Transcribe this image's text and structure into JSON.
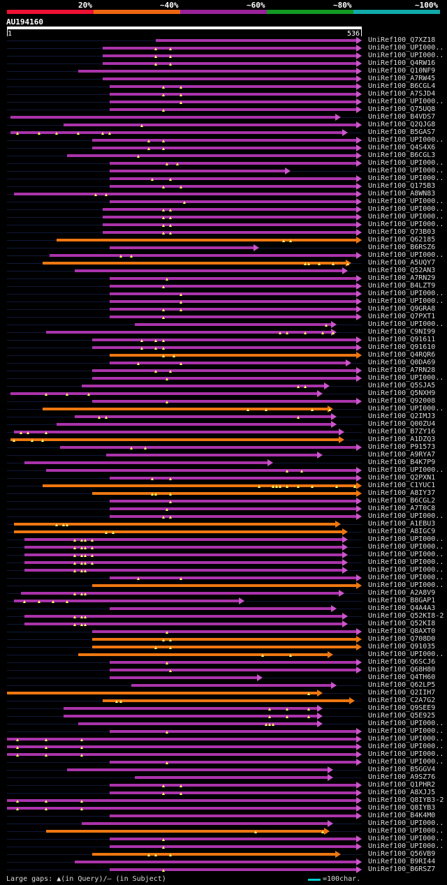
{
  "legend": {
    "labels": [
      "20%",
      "~40%",
      "~60%",
      "~80%",
      "~100%"
    ],
    "colors": [
      "#ee1133",
      "#ee6611",
      "#992299",
      "#119922",
      "#11aaaa"
    ]
  },
  "query": {
    "id": "AU194160",
    "start": "1",
    "end": "536"
  },
  "colors": {
    "orange": "#ee7711",
    "purple": "#aa33aa",
    "arrow_orange": "#ee7711",
    "arrow_purple": "#cc55cc"
  },
  "footer": {
    "gaps": "Large gaps: ▲(in Query)/– (in Subject)",
    "scale": "=100char."
  },
  "hits": [
    {
      "label": "UniRef100_Q7XZ18",
      "start": 0.42,
      "end": 1.0,
      "color": "purple",
      "marks": []
    },
    {
      "label": "UniRef100_UPI000..",
      "start": 0.27,
      "end": 1.0,
      "color": "purple",
      "marks": [
        0.42,
        0.46
      ]
    },
    {
      "label": "UniRef100_UPI000..",
      "start": 0.27,
      "end": 1.0,
      "color": "purple",
      "marks": [
        0.42,
        0.46
      ]
    },
    {
      "label": "UniRef100_Q4RW16",
      "start": 0.27,
      "end": 1.0,
      "color": "purple",
      "marks": [
        0.42,
        0.46
      ]
    },
    {
      "label": "UniRef100_Q10NF9",
      "start": 0.2,
      "end": 1.0,
      "color": "purple",
      "marks": []
    },
    {
      "label": "UniRef100_A7RW45",
      "start": 0.27,
      "end": 1.0,
      "color": "purple",
      "marks": []
    },
    {
      "label": "UniRef100_B6CGL4",
      "start": 0.29,
      "end": 1.0,
      "color": "purple",
      "marks": [
        0.44,
        0.49
      ]
    },
    {
      "label": "UniRef100_A7SJD4",
      "start": 0.29,
      "end": 1.0,
      "color": "purple",
      "marks": [
        0.44,
        0.49
      ]
    },
    {
      "label": "UniRef100_UPI000..",
      "start": 0.29,
      "end": 1.0,
      "color": "purple",
      "marks": [
        0.49
      ]
    },
    {
      "label": "UniRef100_Q75UQ8",
      "start": 0.29,
      "end": 1.0,
      "color": "purple",
      "marks": [
        0.44
      ]
    },
    {
      "label": "UniRef100_B4VDS7",
      "start": 0.01,
      "end": 0.94,
      "color": "purple",
      "marks": []
    },
    {
      "label": "UniRef100_Q2QJG8",
      "start": 0.16,
      "end": 1.0,
      "color": "purple",
      "marks": [
        0.38
      ]
    },
    {
      "label": "UniRef100_B5GAS7",
      "start": 0.01,
      "end": 0.96,
      "color": "purple",
      "marks": [
        0.03,
        0.09,
        0.14,
        0.2,
        0.27,
        0.29
      ]
    },
    {
      "label": "UniRef100_UPI000..",
      "start": 0.24,
      "end": 1.0,
      "color": "purple",
      "marks": [
        0.4,
        0.44
      ]
    },
    {
      "label": "UniRef100_Q4S4X6",
      "start": 0.24,
      "end": 1.0,
      "color": "purple",
      "marks": [
        0.4,
        0.44
      ]
    },
    {
      "label": "UniRef100_B6CGL3",
      "start": 0.17,
      "end": 1.0,
      "color": "purple",
      "marks": [
        0.37
      ]
    },
    {
      "label": "UniRef100_UPI000..",
      "start": 0.29,
      "end": 1.0,
      "color": "purple",
      "marks": [
        0.45,
        0.48
      ]
    },
    {
      "label": "UniRef100_UPI000..",
      "start": 0.29,
      "end": 0.8,
      "color": "purple",
      "marks": []
    },
    {
      "label": "UniRef100_UPI000..",
      "start": 0.29,
      "end": 1.0,
      "color": "purple",
      "marks": [
        0.41,
        0.46
      ]
    },
    {
      "label": "UniRef100_Q175B3",
      "start": 0.29,
      "end": 1.0,
      "color": "purple",
      "marks": [
        0.44,
        0.49
      ]
    },
    {
      "label": "UniRef100_A8WN83",
      "start": 0.02,
      "end": 1.0,
      "color": "purple",
      "marks": [
        0.25,
        0.28
      ]
    },
    {
      "label": "UniRef100_UPI000..",
      "start": 0.29,
      "end": 1.0,
      "color": "purple",
      "marks": [
        0.5
      ]
    },
    {
      "label": "UniRef100_UPI000..",
      "start": 0.27,
      "end": 1.0,
      "color": "purple",
      "marks": [
        0.44,
        0.46
      ]
    },
    {
      "label": "UniRef100_UPI000..",
      "start": 0.27,
      "end": 1.0,
      "color": "purple",
      "marks": [
        0.44,
        0.46
      ]
    },
    {
      "label": "UniRef100_UPI000..",
      "start": 0.27,
      "end": 1.0,
      "color": "purple",
      "marks": [
        0.44,
        0.46
      ]
    },
    {
      "label": "UniRef100_Q73B03",
      "start": 0.27,
      "end": 1.0,
      "color": "purple",
      "marks": [
        0.44,
        0.46
      ]
    },
    {
      "label": "UniRef100_Q62185",
      "start": 0.14,
      "end": 1.0,
      "color": "orange",
      "marks": [
        0.78,
        0.8
      ]
    },
    {
      "label": "UniRef100_B6RSZ6",
      "start": 0.29,
      "end": 0.71,
      "color": "purple",
      "marks": []
    },
    {
      "label": "UniRef100_UPI000..",
      "start": 0.12,
      "end": 1.0,
      "color": "purple",
      "marks": [
        0.32,
        0.35
      ]
    },
    {
      "label": "UniRef100_A5UQY7",
      "start": 0.1,
      "end": 0.97,
      "color": "orange",
      "marks": [
        0.84,
        0.85,
        0.88,
        0.92,
        0.96
      ]
    },
    {
      "label": "UniRef100_Q52AN3",
      "start": 0.19,
      "end": 0.96,
      "color": "purple",
      "marks": []
    },
    {
      "label": "UniRef100_A7RN29",
      "start": 0.29,
      "end": 1.0,
      "color": "purple",
      "marks": [
        0.45
      ]
    },
    {
      "label": "UniRef100_B4LZT9",
      "start": 0.29,
      "end": 1.0,
      "color": "purple",
      "marks": [
        0.44
      ]
    },
    {
      "label": "UniRef100_UPI000..",
      "start": 0.29,
      "end": 1.0,
      "color": "purple",
      "marks": [
        0.49
      ]
    },
    {
      "label": "UniRef100_UPI000..",
      "start": 0.29,
      "end": 1.0,
      "color": "purple",
      "marks": [
        0.49
      ]
    },
    {
      "label": "UniRef100_Q9GRA8",
      "start": 0.29,
      "end": 1.0,
      "color": "purple",
      "marks": [
        0.44,
        0.49
      ]
    },
    {
      "label": "UniRef100_Q7PXT1",
      "start": 0.29,
      "end": 1.0,
      "color": "purple",
      "marks": [
        0.44
      ]
    },
    {
      "label": "UniRef100_UPI000..",
      "start": 0.36,
      "end": 0.93,
      "color": "purple",
      "marks": [
        0.9
      ]
    },
    {
      "label": "UniRef100_C9NI99",
      "start": 0.11,
      "end": 0.93,
      "color": "purple",
      "marks": [
        0.77,
        0.79,
        0.84,
        0.89,
        0.92
      ]
    },
    {
      "label": "UniRef100_Q91611",
      "start": 0.24,
      "end": 1.0,
      "color": "purple",
      "marks": [
        0.38,
        0.42,
        0.44
      ]
    },
    {
      "label": "UniRef100_Q91610",
      "start": 0.24,
      "end": 1.0,
      "color": "purple",
      "marks": [
        0.38,
        0.42,
        0.44
      ]
    },
    {
      "label": "UniRef100_Q4RQR6",
      "start": 0.29,
      "end": 1.0,
      "color": "orange",
      "marks": [
        0.44,
        0.47
      ]
    },
    {
      "label": "UniRef100_Q0DA69",
      "start": 0.29,
      "end": 0.97,
      "color": "purple",
      "marks": [
        0.37,
        0.49
      ]
    },
    {
      "label": "UniRef100_A7RN28",
      "start": 0.24,
      "end": 1.0,
      "color": "purple",
      "marks": [
        0.42,
        0.46
      ]
    },
    {
      "label": "UniRef100_UPI000..",
      "start": 0.24,
      "end": 1.0,
      "color": "purple",
      "marks": [
        0.45
      ]
    },
    {
      "label": "UniRef100_Q5SJA5",
      "start": 0.21,
      "end": 0.91,
      "color": "purple",
      "marks": [
        0.82,
        0.84
      ]
    },
    {
      "label": "UniRef100_Q5NXH9",
      "start": 0.01,
      "end": 0.89,
      "color": "purple",
      "marks": [
        0.11,
        0.17,
        0.23
      ]
    },
    {
      "label": "UniRef100_Q92008",
      "start": 0.24,
      "end": 1.0,
      "color": "purple",
      "marks": [
        0.45
      ]
    },
    {
      "label": "UniRef100_UPI000..",
      "start": 0.1,
      "end": 0.92,
      "color": "orange",
      "marks": [
        0.68,
        0.73,
        0.86,
        0.91
      ]
    },
    {
      "label": "UniRef100_Q2IMJ3",
      "start": 0.19,
      "end": 0.93,
      "color": "purple",
      "marks": [
        0.26,
        0.28,
        0.82
      ]
    },
    {
      "label": "UniRef100_Q00ZU4",
      "start": 0.14,
      "end": 0.93,
      "color": "purple",
      "marks": []
    },
    {
      "label": "UniRef100_B7ZY16",
      "start": 0.02,
      "end": 0.95,
      "color": "purple",
      "marks": [
        0.04,
        0.06,
        0.11
      ]
    },
    {
      "label": "UniRef100_A1DZQ3",
      "start": 0.01,
      "end": 0.95,
      "color": "orange",
      "marks": [
        0.02,
        0.07,
        0.1
      ]
    },
    {
      "label": "UniRef100_P91573",
      "start": 0.15,
      "end": 1.0,
      "color": "purple",
      "marks": [
        0.35,
        0.39
      ]
    },
    {
      "label": "UniRef100_A9RYA7",
      "start": 0.28,
      "end": 0.89,
      "color": "purple",
      "marks": []
    },
    {
      "label": "UniRef100_B4K7P9",
      "start": 0.05,
      "end": 0.75,
      "color": "purple",
      "marks": []
    },
    {
      "label": "UniRef100_UPI000..",
      "start": 0.11,
      "end": 1.0,
      "color": "purple",
      "marks": [
        0.79,
        0.83
      ]
    },
    {
      "label": "UniRef100_Q2PXN1",
      "start": 0.29,
      "end": 1.0,
      "color": "purple",
      "marks": [
        0.41,
        0.46
      ]
    },
    {
      "label": "UniRef100_C1YUC1",
      "start": 0.1,
      "end": 1.0,
      "color": "orange",
      "marks": [
        0.71,
        0.75,
        0.76,
        0.77,
        0.79,
        0.82,
        0.86,
        0.93,
        0.98
      ]
    },
    {
      "label": "UniRef100_A8IY37",
      "start": 0.24,
      "end": 1.0,
      "color": "orange",
      "marks": [
        0.41,
        0.42,
        0.46
      ]
    },
    {
      "label": "UniRef100_B6CGL2",
      "start": 0.29,
      "end": 1.0,
      "color": "purple",
      "marks": [
        0.46
      ]
    },
    {
      "label": "UniRef100_A7T0C8",
      "start": 0.29,
      "end": 1.0,
      "color": "purple",
      "marks": [
        0.45
      ]
    },
    {
      "label": "UniRef100_UPI000..",
      "start": 0.29,
      "end": 1.0,
      "color": "purple",
      "marks": [
        0.44,
        0.46
      ]
    },
    {
      "label": "UniRef100_A1EBU3",
      "start": 0.02,
      "end": 0.94,
      "color": "orange",
      "marks": [
        0.14,
        0.16,
        0.17
      ]
    },
    {
      "label": "UniRef100_A8IGC9",
      "start": 0.02,
      "end": 0.96,
      "color": "orange",
      "marks": [
        0.28,
        0.3
      ]
    },
    {
      "label": "UniRef100_UPI000..",
      "start": 0.05,
      "end": 0.96,
      "color": "purple",
      "marks": [
        0.19,
        0.21,
        0.22,
        0.24
      ]
    },
    {
      "label": "UniRef100_UPI000..",
      "start": 0.05,
      "end": 0.96,
      "color": "purple",
      "marks": [
        0.19,
        0.21,
        0.22,
        0.24
      ]
    },
    {
      "label": "UniRef100_UPI000..",
      "start": 0.05,
      "end": 0.96,
      "color": "purple",
      "marks": [
        0.19,
        0.21,
        0.22,
        0.24
      ]
    },
    {
      "label": "UniRef100_UPI000..",
      "start": 0.05,
      "end": 0.96,
      "color": "purple",
      "marks": [
        0.19,
        0.21,
        0.22,
        0.24
      ]
    },
    {
      "label": "UniRef100_UPI000..",
      "start": 0.05,
      "end": 0.96,
      "color": "purple",
      "marks": [
        0.19,
        0.21,
        0.22
      ]
    },
    {
      "label": "UniRef100_UPI000..",
      "start": 0.29,
      "end": 1.0,
      "color": "purple",
      "marks": [
        0.37,
        0.49
      ]
    },
    {
      "label": "UniRef100_UPI000..",
      "start": 0.24,
      "end": 1.0,
      "color": "orange",
      "marks": []
    },
    {
      "label": "UniRef100_A2A8V9",
      "start": 0.04,
      "end": 0.95,
      "color": "purple",
      "marks": [
        0.19,
        0.21,
        0.22
      ]
    },
    {
      "label": "UniRef100_B8GAP1",
      "start": 0.02,
      "end": 0.67,
      "color": "purple",
      "marks": [
        0.05,
        0.09,
        0.13,
        0.17
      ]
    },
    {
      "label": "UniRef100_Q4A4A3",
      "start": 0.29,
      "end": 0.93,
      "color": "purple",
      "marks": []
    },
    {
      "label": "UniRef100_Q52KI8-2",
      "start": 0.05,
      "end": 0.96,
      "color": "purple",
      "marks": [
        0.19,
        0.21,
        0.22
      ]
    },
    {
      "label": "UniRef100_Q52KI8",
      "start": 0.05,
      "end": 0.96,
      "color": "purple",
      "marks": [
        0.19,
        0.21,
        0.22
      ]
    },
    {
      "label": "UniRef100_Q8AXT0",
      "start": 0.24,
      "end": 1.0,
      "color": "purple",
      "marks": [
        0.45
      ]
    },
    {
      "label": "UniRef100_Q708D0",
      "start": 0.24,
      "end": 1.0,
      "color": "orange",
      "marks": [
        0.44,
        0.46
      ]
    },
    {
      "label": "UniRef100_Q91035",
      "start": 0.24,
      "end": 1.0,
      "color": "orange",
      "marks": [
        0.42,
        0.46
      ]
    },
    {
      "label": "UniRef100_UPI000..",
      "start": 0.2,
      "end": 0.92,
      "color": "orange",
      "marks": [
        0.72,
        0.8
      ]
    },
    {
      "label": "UniRef100_Q6SCJ6",
      "start": 0.29,
      "end": 1.0,
      "color": "purple",
      "marks": [
        0.45
      ]
    },
    {
      "label": "UniRef100_Q68H80",
      "start": 0.29,
      "end": 1.0,
      "color": "purple",
      "marks": [
        0.46
      ]
    },
    {
      "label": "UniRef100_Q4TH60",
      "start": 0.29,
      "end": 0.72,
      "color": "purple",
      "marks": []
    },
    {
      "label": "UniRef100_Q62LP5",
      "start": 0.35,
      "end": 0.93,
      "color": "purple",
      "marks": []
    },
    {
      "label": "UniRef100_Q2IIH7",
      "start": 0.0,
      "end": 0.89,
      "color": "orange",
      "marks": [
        0.85
      ]
    },
    {
      "label": "UniRef100_C2A7G2",
      "start": 0.27,
      "end": 0.98,
      "color": "orange",
      "marks": [
        0.31,
        0.32
      ]
    },
    {
      "label": "UniRef100_Q9SEE9",
      "start": 0.16,
      "end": 0.89,
      "color": "purple",
      "marks": [
        0.74,
        0.79,
        0.85
      ]
    },
    {
      "label": "UniRef100_Q5E925",
      "start": 0.16,
      "end": 0.89,
      "color": "purple",
      "marks": [
        0.74,
        0.79,
        0.85
      ]
    },
    {
      "label": "UniRef100_UPI000..",
      "start": 0.2,
      "end": 0.89,
      "color": "purple",
      "marks": [
        0.73,
        0.74,
        0.75
      ]
    },
    {
      "label": "UniRef100_UPI000..",
      "start": 0.29,
      "end": 1.0,
      "color": "purple",
      "marks": [
        0.45
      ]
    },
    {
      "label": "UniRef100_UPI000..",
      "start": 0.0,
      "end": 1.0,
      "color": "purple",
      "marks": [
        0.03,
        0.11,
        0.21
      ]
    },
    {
      "label": "UniRef100_UPI000..",
      "start": 0.0,
      "end": 1.0,
      "color": "purple",
      "marks": [
        0.03,
        0.11,
        0.21
      ]
    },
    {
      "label": "UniRef100_UPI000..",
      "start": 0.0,
      "end": 1.0,
      "color": "purple",
      "marks": [
        0.03,
        0.11,
        0.21
      ]
    },
    {
      "label": "UniRef100_UPI000..",
      "start": 0.29,
      "end": 1.0,
      "color": "purple",
      "marks": [
        0.45
      ]
    },
    {
      "label": "UniRef100_B5GGV4",
      "start": 0.17,
      "end": 0.92,
      "color": "purple",
      "marks": []
    },
    {
      "label": "UniRef100_A9SZ76",
      "start": 0.36,
      "end": 0.92,
      "color": "purple",
      "marks": []
    },
    {
      "label": "UniRef100_Q1PHR2",
      "start": 0.29,
      "end": 1.0,
      "color": "purple",
      "marks": [
        0.44,
        0.49
      ]
    },
    {
      "label": "UniRef100_A8XJJ5",
      "start": 0.29,
      "end": 1.0,
      "color": "purple",
      "marks": [
        0.44,
        0.49
      ]
    },
    {
      "label": "UniRef100_Q8IYB3-2",
      "start": 0.0,
      "end": 1.0,
      "color": "purple",
      "marks": [
        0.03,
        0.11,
        0.21
      ]
    },
    {
      "label": "UniRef100_Q8IYB3",
      "start": 0.0,
      "end": 1.0,
      "color": "purple",
      "marks": [
        0.03,
        0.11,
        0.21
      ]
    },
    {
      "label": "UniRef100_B4K4M0",
      "start": 0.29,
      "end": 1.0,
      "color": "purple",
      "marks": []
    },
    {
      "label": "UniRef100_UPI000..",
      "start": 0.21,
      "end": 0.92,
      "color": "purple",
      "marks": []
    },
    {
      "label": "UniRef100_UPI000..",
      "start": 0.11,
      "end": 0.91,
      "color": "orange",
      "marks": [
        0.7,
        0.89
      ]
    },
    {
      "label": "UniRef100_UPI000..",
      "start": 0.29,
      "end": 1.0,
      "color": "purple",
      "marks": [
        0.44
      ]
    },
    {
      "label": "UniRef100_UPI000..",
      "start": 0.29,
      "end": 1.0,
      "color": "purple",
      "marks": [
        0.44
      ]
    },
    {
      "label": "UniRef100_Q56VB9",
      "start": 0.24,
      "end": 0.94,
      "color": "orange",
      "marks": [
        0.4,
        0.42,
        0.46
      ]
    },
    {
      "label": "UniRef100_B9RI44",
      "start": 0.19,
      "end": 1.0,
      "color": "purple",
      "marks": []
    },
    {
      "label": "UniRef100_B6RSZ7",
      "start": 0.29,
      "end": 1.0,
      "color": "purple",
      "marks": [
        0.44
      ]
    }
  ]
}
